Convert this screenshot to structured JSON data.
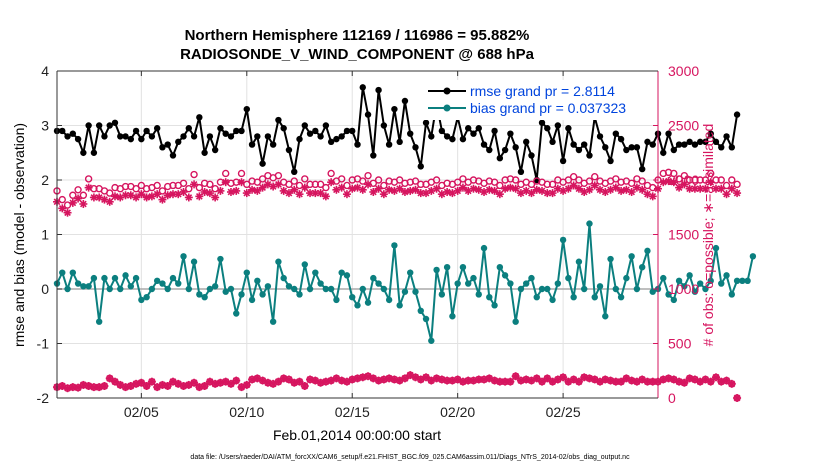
{
  "chart_data": {
    "type": "line",
    "title_line1": "Northern Hemisphere 112169 / 116986 = 95.882%",
    "title_line2": "RADIOSONDE_V_WIND_COMPONENT @ 688 hPa",
    "xlabel": "Feb.01,2014 00:00:00 start",
    "ylabel_left": "rmse and bias (model - observation)",
    "ylabel_right": "# of obs: o=possible; ∗=assimilated",
    "footer": "data file: /Users/raeder/DAI/ATM_forcXX/CAM6_setup/f.e21.FHIST_BGC.f09_025.CAM6assim.011/Diags_NTrS_2014-02/obs_diag_output.nc",
    "xlim": [
      1,
      29.5
    ],
    "ylim_left": [
      -2,
      4
    ],
    "ylim_right": [
      0,
      3000
    ],
    "x_ticks": [
      {
        "value": 5,
        "label": "02/05"
      },
      {
        "value": 10,
        "label": "02/10"
      },
      {
        "value": 15,
        "label": "02/15"
      },
      {
        "value": 20,
        "label": "02/20"
      },
      {
        "value": 25,
        "label": "02/25"
      }
    ],
    "left_ticks": [
      {
        "value": -2,
        "label": "-2"
      },
      {
        "value": -1,
        "label": "-1"
      },
      {
        "value": 0,
        "label": "0"
      },
      {
        "value": 1,
        "label": "1"
      },
      {
        "value": 2,
        "label": "2"
      },
      {
        "value": 3,
        "label": "3"
      },
      {
        "value": 4,
        "label": "4"
      }
    ],
    "right_ticks": [
      {
        "value": 0,
        "label": "0"
      },
      {
        "value": 500,
        "label": "500"
      },
      {
        "value": 1000,
        "label": "1000"
      },
      {
        "value": 1500,
        "label": "1500"
      },
      {
        "value": 2000,
        "label": "2000"
      },
      {
        "value": 2500,
        "label": "2500"
      },
      {
        "value": 3000,
        "label": "3000"
      }
    ],
    "x_start": 1,
    "x_step": 0.25,
    "series": [
      {
        "name": "rmse grand pr = 2.8114",
        "axis": "left",
        "color": "#000000",
        "values": [
          2.9,
          2.9,
          2.8,
          2.85,
          2.75,
          2.5,
          3.0,
          2.5,
          3.0,
          2.8,
          3.0,
          3.05,
          2.8,
          2.8,
          2.75,
          2.9,
          2.75,
          2.9,
          2.8,
          2.95,
          2.6,
          2.65,
          2.45,
          2.7,
          2.8,
          2.95,
          2.8,
          3.15,
          2.5,
          2.8,
          2.55,
          2.95,
          2.85,
          2.8,
          2.9,
          2.9,
          3.3,
          2.65,
          2.8,
          2.3,
          2.8,
          2.65,
          3.1,
          2.95,
          2.55,
          2.15,
          2.75,
          3.0,
          2.85,
          2.9,
          2.8,
          3.0,
          2.7,
          2.75,
          2.8,
          2.9,
          2.9,
          2.65,
          3.7,
          3.2,
          2.45,
          3.65,
          3.0,
          2.65,
          3.3,
          2.7,
          3.45,
          2.85,
          2.6,
          2.25,
          3.05,
          2.8,
          3.4,
          2.9,
          2.8,
          2.75,
          3.15,
          2.75,
          2.95,
          2.85,
          2.95,
          2.65,
          2.55,
          2.9,
          2.4,
          2.55,
          2.85,
          2.6,
          2.15,
          2.7,
          2.45,
          2.0,
          3.05,
          2.95,
          2.7,
          3.0,
          2.35,
          2.95,
          2.65,
          2.55,
          2.65,
          2.45,
          3.15,
          2.8,
          2.6,
          2.35,
          2.85,
          2.75,
          2.55,
          2.6,
          2.6,
          2.2,
          2.7,
          2.65,
          2.85,
          2.5,
          2.85,
          2.55,
          2.65,
          2.65,
          2.7,
          2.65,
          2.7,
          2.7,
          2.85,
          2.7,
          2.6,
          2.8,
          2.6,
          3.2
        ]
      },
      {
        "name": "bias grand pr = 0.037323",
        "axis": "left",
        "color": "#0b7f7f",
        "values": [
          0.1,
          0.3,
          0.0,
          0.3,
          0.1,
          0.05,
          0.05,
          0.2,
          -0.6,
          0.2,
          0.0,
          0.2,
          0.0,
          0.25,
          0.05,
          0.2,
          -0.2,
          -0.15,
          0.0,
          0.15,
          0.1,
          0.0,
          0.2,
          0.1,
          0.6,
          0.0,
          0.5,
          -0.1,
          -0.15,
          0.0,
          0.05,
          0.55,
          -0.05,
          0.0,
          -0.45,
          -0.1,
          0.3,
          -0.2,
          0.15,
          -0.1,
          0.05,
          -0.6,
          0.5,
          0.2,
          0.05,
          0.0,
          -0.1,
          0.45,
          0.0,
          0.3,
          0.1,
          0.0,
          0.0,
          -0.2,
          0.3,
          0.25,
          -0.15,
          -0.3,
          0.0,
          -0.25,
          0.2,
          0.1,
          0.0,
          -0.2,
          0.8,
          -0.3,
          -0.05,
          0.3,
          -0.05,
          -0.4,
          -0.55,
          -0.95,
          0.35,
          -0.1,
          0.4,
          -0.5,
          0.1,
          0.4,
          0.1,
          0.2,
          -0.1,
          0.75,
          -0.15,
          -0.3,
          0.4,
          0.25,
          0.1,
          -0.6,
          0.0,
          0.1,
          0.2,
          -0.15,
          0.0,
          0.0,
          -0.2,
          0.1,
          0.9,
          0.2,
          -0.15,
          0.5,
          0.0,
          1.2,
          -0.15,
          0.05,
          -0.5,
          0.55,
          0.0,
          -0.15,
          0.2,
          0.6,
          0.0,
          0.4,
          0.7,
          -0.05,
          0.0,
          0.2,
          -0.1,
          -0.2,
          0.15,
          0.05,
          0.25,
          -0.05,
          0.1,
          0.0,
          0.15,
          0.75,
          0.1,
          0.25,
          -0.1,
          0.15,
          0.15,
          0.15,
          0.6
        ]
      },
      {
        "name": "obs possible",
        "axis": "right",
        "color": "#d6155f",
        "values": [
          1900,
          1820,
          1770,
          1860,
          1910,
          1860,
          2010,
          1920,
          1920,
          1900,
          1880,
          1930,
          1920,
          1940,
          1940,
          1920,
          1950,
          1920,
          1930,
          1950,
          1900,
          1940,
          1950,
          1950,
          1970,
          1920,
          2050,
          1930,
          1970,
          1960,
          1920,
          1980,
          2060,
          1970,
          1980,
          2060,
          1960,
          1990,
          1980,
          2010,
          2040,
          2020,
          2040,
          1980,
          1960,
          1990,
          1950,
          2010,
          1960,
          1960,
          1960,
          1930,
          2060,
          1990,
          2010,
          1950,
          2000,
          2010,
          1990,
          2040,
          1970,
          2000,
          1950,
          1990,
          1980,
          2000,
          1970,
          1980,
          1990,
          1960,
          1960,
          1980,
          2000,
          1950,
          1970,
          1960,
          1980,
          2010,
          1980,
          2000,
          1990,
          1970,
          1990,
          1980,
          1950,
          2000,
          2010,
          2000,
          1960,
          1980,
          1960,
          1990,
          1980,
          1960,
          1960,
          2000,
          1980,
          2000,
          2030,
          2000,
          1970,
          1990,
          2030,
          1990,
          1970,
          1990,
          2010,
          1980,
          1990,
          1970,
          2010,
          1990,
          1950,
          1930,
          2000,
          2060,
          2070,
          2060,
          2010,
          2040,
          2000,
          2000,
          2000,
          2000,
          2060,
          2000,
          2000,
          1950,
          2000,
          1960
        ]
      },
      {
        "name": "obs assimilated",
        "axis": "right",
        "color": "#d6155f",
        "values": [
          1800,
          1740,
          1700,
          1790,
          1830,
          1780,
          1930,
          1840,
          1840,
          1820,
          1800,
          1850,
          1840,
          1860,
          1860,
          1840,
          1870,
          1840,
          1850,
          1870,
          1820,
          1860,
          1870,
          1870,
          1890,
          1840,
          1960,
          1850,
          1890,
          1880,
          1840,
          1900,
          1980,
          1890,
          1900,
          1980,
          1880,
          1910,
          1900,
          1930,
          1960,
          1940,
          1960,
          1900,
          1880,
          1910,
          1870,
          1930,
          1880,
          1880,
          1880,
          1850,
          1980,
          1910,
          1930,
          1870,
          1920,
          1930,
          1910,
          1960,
          1890,
          1920,
          1870,
          1910,
          1900,
          1920,
          1890,
          1900,
          1910,
          1880,
          1880,
          1900,
          1920,
          1870,
          1890,
          1880,
          1900,
          1930,
          1900,
          1920,
          1910,
          1890,
          1910,
          1900,
          1870,
          1920,
          1930,
          1920,
          1880,
          1900,
          1880,
          1910,
          1900,
          1880,
          1880,
          1920,
          1900,
          1920,
          1950,
          1920,
          1890,
          1910,
          1950,
          1910,
          1890,
          1910,
          1930,
          1900,
          1910,
          1890,
          1930,
          1910,
          1870,
          1850,
          1920,
          1980,
          1990,
          1980,
          1930,
          1960,
          1920,
          1920,
          1920,
          1920,
          1980,
          1920,
          1920,
          1870,
          1920,
          1880
        ]
      },
      {
        "name": "obs possible (low)",
        "axis": "right",
        "color": "#d6155f",
        "values": [
          100,
          110,
          90,
          100,
          95,
          120,
          110,
          100,
          100,
          110,
          180,
          150,
          120,
          100,
          110,
          130,
          140,
          110,
          150,
          100,
          120,
          110,
          150,
          130,
          110,
          120,
          140,
          100,
          110,
          150,
          130,
          140,
          150,
          130,
          160,
          100,
          120,
          170,
          180,
          160,
          140,
          130,
          150,
          180,
          170,
          140,
          150,
          110,
          170,
          160,
          140,
          150,
          160,
          180,
          160,
          150,
          170,
          180,
          190,
          200,
          180,
          160,
          170,
          180,
          170,
          160,
          180,
          210,
          190,
          170,
          190,
          160,
          180,
          170,
          160,
          160,
          170,
          150,
          160,
          160,
          170,
          170,
          180,
          160,
          150,
          150,
          150,
          200,
          160,
          170,
          160,
          180,
          150,
          180,
          150,
          170,
          190,
          150,
          170,
          150,
          190,
          180,
          170,
          150,
          170,
          160,
          150,
          150,
          180,
          160,
          150,
          170,
          150,
          150,
          150,
          170,
          180,
          170,
          150,
          140,
          180,
          170,
          150,
          170,
          150,
          190,
          150,
          160,
          130,
          0
        ]
      },
      {
        "name": "obs assimilated (low)",
        "axis": "right",
        "color": "#d6155f",
        "values": [
          100,
          110,
          90,
          100,
          95,
          120,
          110,
          100,
          100,
          110,
          180,
          150,
          120,
          100,
          110,
          130,
          140,
          110,
          150,
          100,
          120,
          110,
          150,
          130,
          110,
          120,
          140,
          100,
          110,
          150,
          130,
          140,
          150,
          130,
          160,
          100,
          120,
          170,
          180,
          160,
          140,
          130,
          150,
          180,
          170,
          140,
          150,
          110,
          170,
          160,
          140,
          150,
          160,
          180,
          160,
          150,
          170,
          180,
          190,
          200,
          180,
          160,
          170,
          180,
          170,
          160,
          180,
          210,
          190,
          170,
          190,
          160,
          180,
          170,
          160,
          160,
          170,
          150,
          160,
          160,
          170,
          170,
          180,
          160,
          150,
          150,
          150,
          200,
          160,
          170,
          160,
          180,
          150,
          180,
          150,
          170,
          190,
          150,
          170,
          150,
          190,
          180,
          170,
          150,
          170,
          160,
          150,
          150,
          180,
          160,
          150,
          170,
          150,
          150,
          150,
          170,
          180,
          170,
          150,
          140,
          180,
          170,
          150,
          170,
          150,
          190,
          150,
          160,
          130,
          0
        ]
      }
    ],
    "legend": {
      "placement": "top-right",
      "entries": [
        {
          "label": "rmse grand pr = 2.8114",
          "color": "#000000",
          "text_color": "#0044dd"
        },
        {
          "label": "bias grand pr = 0.037323",
          "color": "#0b7f7f",
          "text_color": "#0044dd"
        }
      ]
    },
    "grid": true
  }
}
